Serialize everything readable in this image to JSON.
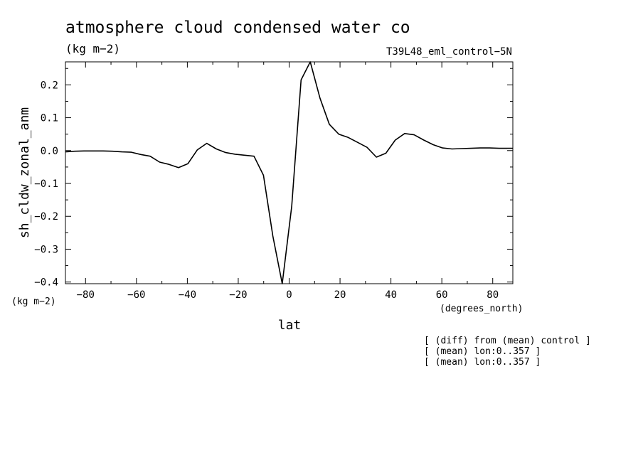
{
  "chart_data": {
    "type": "line",
    "title": "atmosphere cloud condensed water co",
    "units": "(kg m−2)",
    "subtitle": "T39L48_eml_control−5N",
    "ylabel": "sh_cldw_zonal_anm",
    "xlabel": "lat",
    "x_units": "(degrees_north)",
    "y_units": "(kg m−2)",
    "xlim": [
      -87.9,
      87.9
    ],
    "ylim": [
      -0.405,
      0.27
    ],
    "x_ticks": [
      -80,
      -60,
      -40,
      -20,
      0,
      20,
      40,
      60,
      80
    ],
    "x_tick_labels": [
      "−80",
      "−60",
      "−40",
      "−20",
      "0",
      "20",
      "40",
      "60",
      "80"
    ],
    "y_ticks": [
      -0.4,
      -0.3,
      -0.2,
      -0.1,
      0.0,
      0.1,
      0.2
    ],
    "y_tick_labels": [
      "−0.4",
      "−0.3",
      "−0.2",
      "−0.1",
      "0.0",
      "0.1",
      "0.2"
    ],
    "notes": [
      "[ (diff) from (mean) control ]",
      "[ (mean) lon:0..357 ]",
      "[ (mean) lon:0..357 ]"
    ],
    "series": [
      {
        "x": [
          -87.9,
          -84.3,
          -80.6,
          -76.9,
          -73.1,
          -69.4,
          -65.7,
          -62.0,
          -58.3,
          -54.6,
          -50.9,
          -47.2,
          -43.5,
          -39.8,
          -36.1,
          -32.4,
          -28.6,
          -24.9,
          -21.2,
          -17.5,
          -13.8,
          -10.1,
          -6.4,
          -2.7,
          1.0,
          4.7,
          8.3,
          12.1,
          15.8,
          19.5,
          23.2,
          26.9,
          30.6,
          34.3,
          38.0,
          41.7,
          45.4,
          49.1,
          52.9,
          56.6,
          60.3,
          64.0,
          67.7,
          71.4,
          75.1,
          78.8,
          82.5,
          87.9
        ],
        "y": [
          -0.004,
          -0.002,
          -0.001,
          -0.001,
          -0.001,
          -0.002,
          -0.004,
          -0.005,
          -0.012,
          -0.017,
          -0.035,
          -0.042,
          -0.052,
          -0.04,
          0.002,
          0.022,
          0.005,
          -0.006,
          -0.011,
          -0.014,
          -0.017,
          -0.075,
          -0.26,
          -0.405,
          -0.17,
          0.215,
          0.27,
          0.16,
          0.08,
          0.05,
          0.04,
          0.025,
          0.01,
          -0.02,
          -0.008,
          0.032,
          0.052,
          0.048,
          0.032,
          0.018,
          0.008,
          0.005,
          0.006,
          0.007,
          0.008,
          0.008,
          0.007,
          0.007
        ]
      }
    ]
  }
}
